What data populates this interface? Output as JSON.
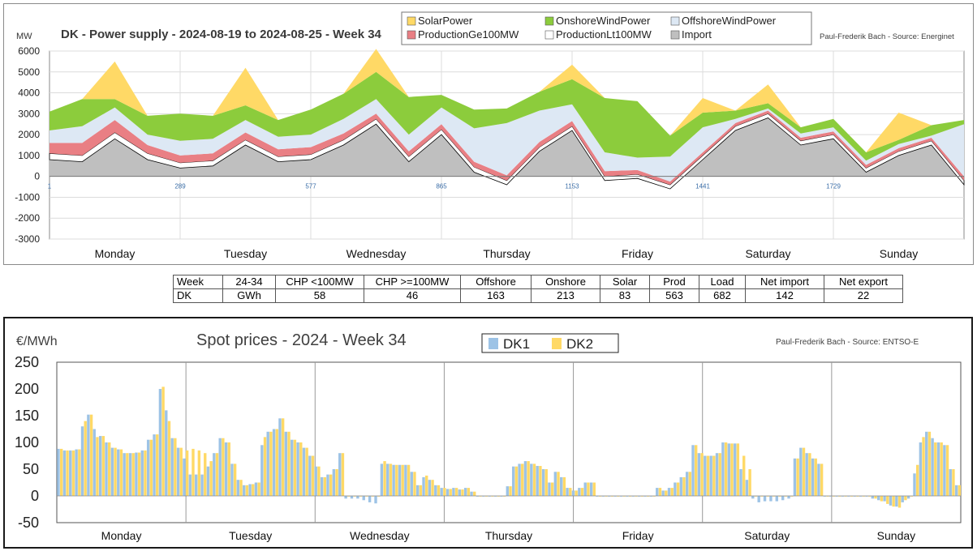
{
  "power_chart": {
    "chart_data": {
      "type": "area",
      "title": "DK - Power supply - 2024-08-19 to 2024-08-25 - Week 34",
      "source": "Paul-Frederik Bach - Source: Energinet",
      "ylabel": "MW",
      "ylim": [
        -3000,
        6000
      ],
      "yticks": [
        "6000",
        "5000",
        "4000",
        "3000",
        "2000",
        "1000",
        "0",
        "-1000",
        "-2000",
        "-3000"
      ],
      "xticks": [
        "1",
        "289",
        "577",
        "865",
        "1153",
        "1441",
        "1729"
      ],
      "days": [
        "Monday",
        "Tuesday",
        "Wednesday",
        "Thursday",
        "Friday",
        "Saturday",
        "Sunday"
      ],
      "legend": [
        {
          "name": "SolarPower",
          "color": "#ffd966"
        },
        {
          "name": "OnshoreWindPower",
          "color": "#8ccc3c"
        },
        {
          "name": "OffshoreWindPower",
          "color": "#dde8f4"
        },
        {
          "name": "ProductionGe100MW",
          "color": "#e97f84"
        },
        {
          "name": "ProductionLt100MW",
          "color": "#ffffff"
        },
        {
          "name": "Import",
          "color": "#bfbfbf"
        }
      ],
      "hours": [
        0,
        6,
        12,
        18,
        24,
        30,
        36,
        42,
        48,
        54,
        60,
        66,
        72,
        78,
        84,
        90,
        96,
        102,
        108,
        114,
        120,
        126,
        132,
        138,
        144,
        150,
        156,
        162,
        168
      ],
      "series": [
        {
          "name": "Import",
          "values": [
            800,
            700,
            1800,
            800,
            400,
            500,
            1500,
            700,
            800,
            1500,
            2500,
            700,
            2000,
            200,
            -400,
            1200,
            2200,
            -200,
            -100,
            -600,
            800,
            2200,
            2800,
            1500,
            1800,
            200,
            1000,
            1500,
            -400
          ]
        },
        {
          "name": "ProductionLt100MW",
          "values": [
            300,
            300,
            300,
            300,
            250,
            250,
            250,
            250,
            250,
            250,
            250,
            250,
            250,
            250,
            200,
            200,
            200,
            200,
            200,
            200,
            200,
            200,
            200,
            200,
            200,
            200,
            200,
            200,
            200
          ]
        },
        {
          "name": "ProductionGe100MW",
          "values": [
            500,
            600,
            600,
            400,
            350,
            350,
            350,
            350,
            350,
            300,
            250,
            250,
            250,
            250,
            250,
            250,
            250,
            250,
            200,
            150,
            150,
            150,
            150,
            150,
            150,
            150,
            150,
            150,
            200
          ]
        },
        {
          "name": "OffshoreWindPower",
          "values": [
            600,
            800,
            600,
            500,
            700,
            700,
            600,
            600,
            600,
            700,
            700,
            800,
            800,
            1600,
            2500,
            1500,
            800,
            900,
            600,
            1200,
            1200,
            200,
            100,
            200,
            200,
            200,
            200,
            100,
            2500
          ]
        },
        {
          "name": "OnshoreWindPower",
          "values": [
            900,
            1300,
            400,
            900,
            1300,
            1100,
            700,
            800,
            1200,
            1200,
            1300,
            1800,
            600,
            900,
            700,
            900,
            1200,
            2600,
            2700,
            1000,
            700,
            400,
            250,
            300,
            400,
            400,
            200,
            500,
            200
          ]
        },
        {
          "name": "SolarPower",
          "values": [
            0,
            0,
            1800,
            0,
            0,
            0,
            1800,
            0,
            0,
            0,
            1100,
            0,
            0,
            0,
            0,
            0,
            700,
            0,
            0,
            0,
            700,
            0,
            900,
            0,
            0,
            0,
            1300,
            0,
            0
          ]
        }
      ]
    }
  },
  "summary_table": {
    "rows": [
      [
        "Week",
        "24-34",
        "CHP <100MW",
        "CHP >=100MW",
        "Offshore",
        "Onshore",
        "Solar",
        "Prod",
        "Load",
        "Net import",
        "Net export"
      ],
      [
        "DK",
        "GWh",
        "58",
        "46",
        "163",
        "213",
        "83",
        "563",
        "682",
        "142",
        "22"
      ]
    ]
  },
  "spot_chart": {
    "chart_data": {
      "type": "bar",
      "title": "Spot prices - 2024 - Week 34",
      "source": "Paul-Frederik Bach - Source: ENTSO-E",
      "ylabel": "€/MWh",
      "ylim": [
        -50,
        250
      ],
      "yticks": [
        "250",
        "200",
        "150",
        "100",
        "50",
        "0",
        "-50"
      ],
      "days": [
        "Monday",
        "Tuesday",
        "Wednesday",
        "Thursday",
        "Friday",
        "Saturday",
        "Sunday"
      ],
      "series": [
        {
          "name": "DK1",
          "color": "#9dc3e6",
          "values": [
            88,
            85,
            85,
            87,
            130,
            152,
            125,
            112,
            100,
            90,
            87,
            80,
            80,
            81,
            85,
            105,
            115,
            200,
            160,
            108,
            90,
            70,
            40,
            40,
            40,
            55,
            80,
            108,
            100,
            60,
            30,
            20,
            22,
            25,
            95,
            120,
            125,
            145,
            120,
            105,
            100,
            90,
            75,
            55,
            35,
            40,
            50,
            80,
            -5,
            -5,
            -5,
            -8,
            -12,
            -14,
            60,
            60,
            58,
            58,
            58,
            45,
            20,
            35,
            30,
            20,
            15,
            13,
            15,
            12,
            15,
            8,
            0,
            0,
            0,
            0,
            0,
            18,
            55,
            60,
            65,
            60,
            56,
            50,
            25,
            45,
            35,
            15,
            10,
            15,
            25,
            25,
            0,
            0,
            0,
            0,
            0,
            0,
            0,
            0,
            0,
            0,
            15,
            10,
            15,
            25,
            35,
            45,
            95,
            80,
            75,
            75,
            80,
            100,
            98,
            98,
            50,
            30,
            -5,
            -12,
            -10,
            -10,
            -10,
            -8,
            -5,
            70,
            90,
            80,
            70,
            60,
            0,
            0,
            0,
            0,
            0,
            0,
            0,
            0,
            -5,
            -8,
            -10,
            -18,
            -20,
            -12,
            -5,
            42,
            100,
            120,
            108,
            100,
            95,
            50,
            20
          ]
        },
        {
          "name": "DK2",
          "color": "#ffd966",
          "values": [
            88,
            85,
            85,
            87,
            140,
            152,
            110,
            112,
            100,
            90,
            87,
            80,
            80,
            81,
            85,
            105,
            115,
            204,
            140,
            108,
            90,
            85,
            88,
            85,
            80,
            65,
            80,
            108,
            100,
            60,
            30,
            20,
            22,
            25,
            110,
            120,
            125,
            145,
            120,
            105,
            100,
            90,
            75,
            55,
            35,
            40,
            50,
            80,
            0,
            0,
            0,
            0,
            0,
            0,
            65,
            60,
            58,
            58,
            58,
            45,
            20,
            38,
            30,
            20,
            15,
            13,
            15,
            12,
            15,
            8,
            0,
            0,
            0,
            0,
            0,
            18,
            55,
            60,
            65,
            60,
            56,
            50,
            25,
            45,
            35,
            15,
            10,
            15,
            25,
            25,
            0,
            0,
            0,
            0,
            0,
            0,
            0,
            0,
            0,
            0,
            15,
            10,
            15,
            25,
            35,
            45,
            95,
            80,
            75,
            75,
            80,
            100,
            98,
            98,
            75,
            50,
            0,
            0,
            0,
            0,
            0,
            0,
            0,
            70,
            90,
            80,
            70,
            60,
            0,
            0,
            0,
            0,
            0,
            0,
            0,
            0,
            -5,
            -10,
            -15,
            -20,
            -22,
            -8,
            0,
            58,
            110,
            120,
            100,
            100,
            95,
            50,
            20
          ]
        }
      ]
    }
  }
}
